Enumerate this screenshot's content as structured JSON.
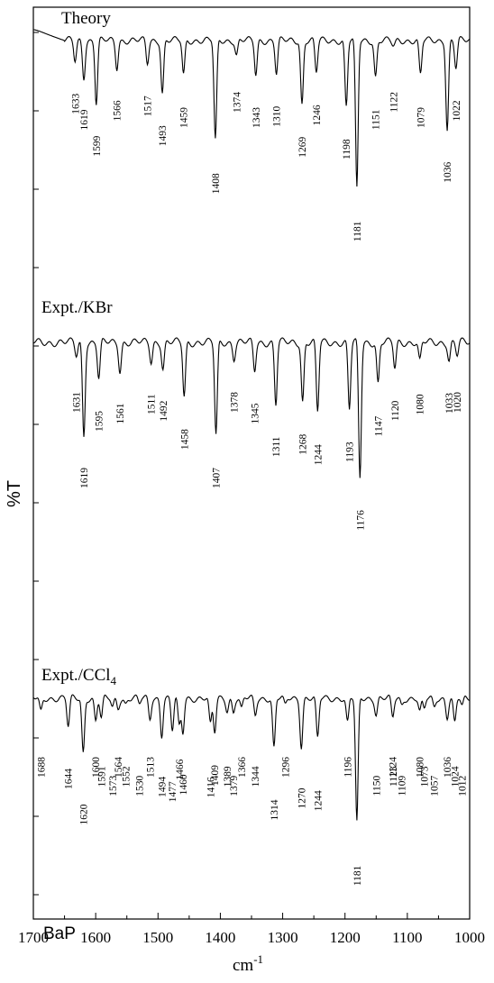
{
  "chart_data": {
    "type": "line",
    "xlabel": "cm",
    "xlabel_sup": "-1",
    "ylabel": "%T",
    "xlim": [
      1700,
      1000
    ],
    "x_reversed": true,
    "x_ticks": [
      "1700",
      "1600",
      "1500",
      "1400",
      "1300",
      "1200",
      "1100",
      "1000"
    ],
    "grid": false,
    "annotation": "BaP",
    "series": [
      {
        "name": "Theory",
        "title_main": "Theory",
        "title_sub": "",
        "baseline": 0.0,
        "depth_scale": 1.0,
        "peaks": [
          {
            "label": "1633",
            "x": 1633,
            "depth": 0.18,
            "w": 3
          },
          {
            "label": "1619",
            "x": 1619,
            "depth": 0.32,
            "w": 3
          },
          {
            "label": "1599",
            "x": 1599,
            "depth": 0.55,
            "w": 3
          },
          {
            "label": "1566",
            "x": 1566,
            "depth": 0.24,
            "w": 3
          },
          {
            "label": "1517",
            "x": 1517,
            "depth": 0.2,
            "w": 3
          },
          {
            "label": "1493",
            "x": 1493,
            "depth": 0.46,
            "w": 3
          },
          {
            "label": "1459",
            "x": 1459,
            "depth": 0.3,
            "w": 3
          },
          {
            "label": "1408",
            "x": 1408,
            "depth": 0.88,
            "w": 3
          },
          {
            "label": "1374",
            "x": 1374,
            "depth": 0.13,
            "w": 3
          },
          {
            "label": "1343",
            "x": 1343,
            "depth": 0.3,
            "w": 3
          },
          {
            "label": "1310",
            "x": 1310,
            "depth": 0.29,
            "w": 3
          },
          {
            "label": "1269",
            "x": 1269,
            "depth": 0.56,
            "w": 3
          },
          {
            "label": "1246",
            "x": 1246,
            "depth": 0.28,
            "w": 3
          },
          {
            "label": "1198",
            "x": 1198,
            "depth": 0.58,
            "w": 3
          },
          {
            "label": "1181",
            "x": 1181,
            "depth": 1.3,
            "w": 3
          },
          {
            "label": "1151",
            "x": 1151,
            "depth": 0.32,
            "w": 3
          },
          {
            "label": "1122",
            "x": 1122,
            "depth": 0.05,
            "w": 4
          },
          {
            "label": "1079",
            "x": 1079,
            "depth": 0.3,
            "w": 3
          },
          {
            "label": "1036",
            "x": 1036,
            "depth": 0.78,
            "w": 3
          },
          {
            "label": "1022",
            "x": 1022,
            "depth": 0.24,
            "w": 3
          }
        ]
      },
      {
        "name": "Expt./KBr",
        "title_main": "Expt./KBr",
        "title_sub": "",
        "baseline": 0.0,
        "depth_scale": 1.0,
        "peaks": [
          {
            "label": "1631",
            "x": 1631,
            "depth": 0.1,
            "w": 3
          },
          {
            "label": "1619",
            "x": 1619,
            "depth": 0.72,
            "w": 3
          },
          {
            "label": "1595",
            "x": 1595,
            "depth": 0.28,
            "w": 3
          },
          {
            "label": "1561",
            "x": 1561,
            "depth": 0.22,
            "w": 3
          },
          {
            "label": "1511",
            "x": 1511,
            "depth": 0.15,
            "w": 3
          },
          {
            "label": "1492",
            "x": 1492,
            "depth": 0.2,
            "w": 3
          },
          {
            "label": "1458",
            "x": 1458,
            "depth": 0.42,
            "w": 3
          },
          {
            "label": "1407",
            "x": 1407,
            "depth": 0.72,
            "w": 3
          },
          {
            "label": "1378",
            "x": 1378,
            "depth": 0.12,
            "w": 3
          },
          {
            "label": "1345",
            "x": 1345,
            "depth": 0.22,
            "w": 3
          },
          {
            "label": "1311",
            "x": 1311,
            "depth": 0.48,
            "w": 3
          },
          {
            "label": "1268",
            "x": 1268,
            "depth": 0.46,
            "w": 3
          },
          {
            "label": "1244",
            "x": 1244,
            "depth": 0.54,
            "w": 3
          },
          {
            "label": "1193",
            "x": 1193,
            "depth": 0.52,
            "w": 3
          },
          {
            "label": "1176",
            "x": 1176,
            "depth": 1.05,
            "w": 3
          },
          {
            "label": "1147",
            "x": 1147,
            "depth": 0.32,
            "w": 3
          },
          {
            "label": "1120",
            "x": 1120,
            "depth": 0.2,
            "w": 3
          },
          {
            "label": "1080",
            "x": 1080,
            "depth": 0.15,
            "w": 3
          },
          {
            "label": "1033",
            "x": 1033,
            "depth": 0.14,
            "w": 3
          },
          {
            "label": "1020",
            "x": 1020,
            "depth": 0.1,
            "w": 3
          }
        ]
      },
      {
        "name": "Expt./CCl4",
        "title_main": "Expt./CCl",
        "title_sub": "4",
        "baseline": 0.0,
        "depth_scale": 1.0,
        "peaks": [
          {
            "label": "1688",
            "x": 1688,
            "depth": 0.12,
            "w": 3
          },
          {
            "label": "1644",
            "x": 1644,
            "depth": 0.25,
            "w": 3
          },
          {
            "label": "1620",
            "x": 1620,
            "depth": 0.48,
            "w": 3
          },
          {
            "label": "1600",
            "x": 1600,
            "depth": 0.2,
            "w": 3
          },
          {
            "label": "1591",
            "x": 1591,
            "depth": 0.18,
            "w": 3
          },
          {
            "label": "1573",
            "x": 1573,
            "depth": 0.08,
            "w": 3
          },
          {
            "label": "1564",
            "x": 1564,
            "depth": 0.08,
            "w": 3
          },
          {
            "label": "1552",
            "x": 1552,
            "depth": 0.05,
            "w": 3
          },
          {
            "label": "1530",
            "x": 1530,
            "depth": 0.05,
            "w": 3
          },
          {
            "label": "1513",
            "x": 1513,
            "depth": 0.18,
            "w": 3
          },
          {
            "label": "1494",
            "x": 1494,
            "depth": 0.32,
            "w": 3
          },
          {
            "label": "1477",
            "x": 1477,
            "depth": 0.28,
            "w": 3
          },
          {
            "label": "1466",
            "x": 1466,
            "depth": 0.25,
            "w": 3
          },
          {
            "label": "1460",
            "x": 1460,
            "depth": 0.3,
            "w": 3
          },
          {
            "label": "1416",
            "x": 1416,
            "depth": 0.24,
            "w": 3
          },
          {
            "label": "1409",
            "x": 1409,
            "depth": 0.3,
            "w": 3
          },
          {
            "label": "1389",
            "x": 1389,
            "depth": 0.1,
            "w": 3
          },
          {
            "label": "1379",
            "x": 1379,
            "depth": 0.12,
            "w": 3
          },
          {
            "label": "1366",
            "x": 1366,
            "depth": 0.1,
            "w": 3
          },
          {
            "label": "1344",
            "x": 1344,
            "depth": 0.15,
            "w": 3
          },
          {
            "label": "1314",
            "x": 1314,
            "depth": 0.44,
            "w": 3
          },
          {
            "label": "1296",
            "x": 1296,
            "depth": 0.07,
            "w": 3
          },
          {
            "label": "1270",
            "x": 1270,
            "depth": 0.42,
            "w": 3
          },
          {
            "label": "1244",
            "x": 1244,
            "depth": 0.36,
            "w": 3
          },
          {
            "label": "1196",
            "x": 1196,
            "depth": 0.22,
            "w": 3
          },
          {
            "label": "1181",
            "x": 1181,
            "depth": 1.1,
            "w": 3
          },
          {
            "label": "1150",
            "x": 1150,
            "depth": 0.14,
            "w": 3
          },
          {
            "label": "1124",
            "x": 1124,
            "depth": 0.1,
            "w": 3
          },
          {
            "label": "1123",
            "x": 1123,
            "depth": 0.08,
            "w": 3
          },
          {
            "label": "1109",
            "x": 1109,
            "depth": 0.06,
            "w": 3
          },
          {
            "label": "1080",
            "x": 1080,
            "depth": 0.12,
            "w": 3
          },
          {
            "label": "1073",
            "x": 1073,
            "depth": 0.1,
            "w": 3
          },
          {
            "label": "1057",
            "x": 1057,
            "depth": 0.08,
            "w": 3
          },
          {
            "label": "1036",
            "x": 1036,
            "depth": 0.16,
            "w": 3
          },
          {
            "label": "1024",
            "x": 1024,
            "depth": 0.22,
            "w": 3
          },
          {
            "label": "1012",
            "x": 1012,
            "depth": 0.08,
            "w": 3
          }
        ]
      }
    ]
  }
}
